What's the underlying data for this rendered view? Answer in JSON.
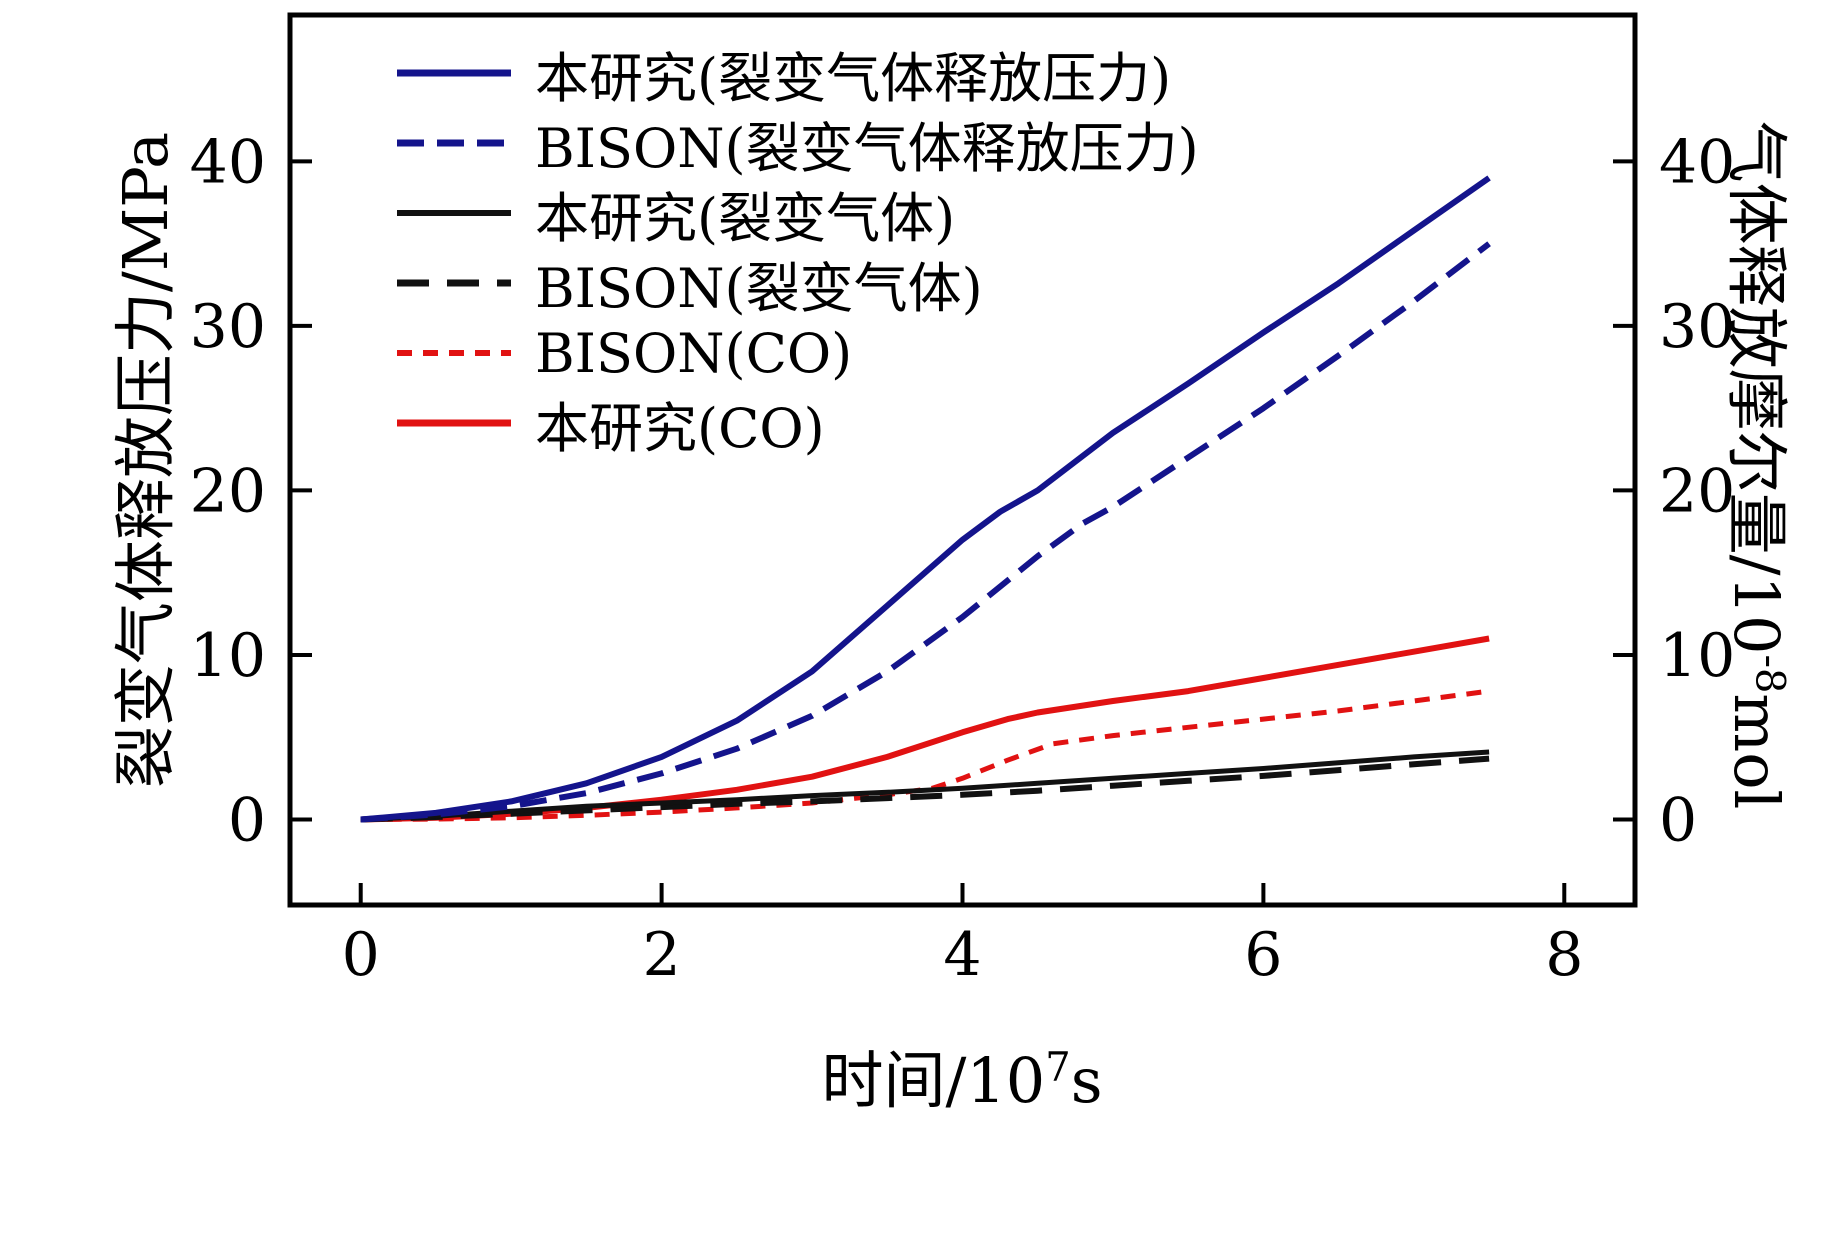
{
  "figure_title": "",
  "chart_data": {
    "type": "line",
    "title": "",
    "xlabel": "时间/10^7 s",
    "xlabel_parts": {
      "base": "时间/10",
      "sup": "7",
      "unit": "s"
    },
    "ylabel_left": "裂变气体释放压力/MPa",
    "ylabel_right": "气体释放摩尔量/10^-8 mol",
    "ylabel_right_parts": {
      "base": "气体释放摩尔量/10",
      "sup": "-8",
      "unit": "mol"
    },
    "xlim": [
      -0.47,
      8.47
    ],
    "ylim": [
      -5.2,
      48.9
    ],
    "x_ticks": [
      0,
      2,
      4,
      6,
      8
    ],
    "y_ticks_left": [
      0,
      10,
      20,
      30,
      40
    ],
    "y_ticks_right": [
      0,
      10,
      20,
      30,
      40
    ],
    "grid": false,
    "legend_position": "upper left",
    "frame": true,
    "series": [
      {
        "name": "本研究(裂变气体释放压力)",
        "color": "#14148c",
        "style": "solid",
        "dash": "",
        "width": 6,
        "x": [
          0,
          0.5,
          1,
          1.5,
          2,
          2.5,
          3,
          3.5,
          4,
          4.25,
          4.5,
          5,
          5.5,
          6,
          6.5,
          7,
          7.5
        ],
        "y": [
          0,
          0.4,
          1.1,
          2.2,
          3.8,
          6,
          9,
          13,
          17,
          18.7,
          20,
          23.5,
          26.5,
          29.6,
          32.6,
          35.8,
          39
        ]
      },
      {
        "name": "BISON(裂变气体释放压力)",
        "color": "#14148c",
        "style": "dashed",
        "dash": "27 13",
        "width": 6,
        "x": [
          0,
          0.5,
          1,
          1.5,
          2,
          2.5,
          3,
          3.5,
          4,
          4.5,
          4.8,
          5,
          5.5,
          6,
          6.5,
          7,
          7.5
        ],
        "y": [
          0,
          0.3,
          0.8,
          1.6,
          2.8,
          4.3,
          6.3,
          9,
          12.3,
          16,
          18,
          19,
          22,
          25,
          28.2,
          31.5,
          35
        ]
      },
      {
        "name": "本研究(裂变气体)",
        "color": "#111111",
        "style": "solid",
        "dash": "",
        "width": 5,
        "x": [
          0,
          0.5,
          1,
          1.5,
          2,
          2.5,
          3,
          3.5,
          4,
          4.5,
          5,
          5.5,
          6,
          6.5,
          7,
          7.5
        ],
        "y": [
          0,
          0.2,
          0.5,
          0.8,
          1,
          1.2,
          1.45,
          1.65,
          1.9,
          2.2,
          2.5,
          2.8,
          3.1,
          3.45,
          3.8,
          4.1
        ]
      },
      {
        "name": "BISON(裂变气体)",
        "color": "#111111",
        "style": "dashed",
        "dash": "32 18",
        "width": 6,
        "x": [
          0,
          0.5,
          1,
          1.5,
          2,
          2.5,
          3,
          3.5,
          4,
          4.5,
          5,
          5.5,
          6,
          6.5,
          7,
          7.5
        ],
        "y": [
          0,
          0.15,
          0.35,
          0.55,
          0.75,
          0.95,
          1.1,
          1.3,
          1.5,
          1.75,
          2.05,
          2.35,
          2.65,
          3,
          3.35,
          3.7
        ]
      },
      {
        "name": "BISON(CO)",
        "color": "#e11212",
        "style": "dashed",
        "dash": "15 11",
        "width": 5,
        "x": [
          0,
          0.5,
          1,
          1.5,
          2,
          2.5,
          3,
          3.5,
          3.8,
          4,
          4.3,
          4.6,
          5,
          5.5,
          6,
          6.5,
          7,
          7.5
        ],
        "y": [
          0,
          0.02,
          0.1,
          0.25,
          0.45,
          0.7,
          1,
          1.5,
          1.9,
          2.5,
          3.6,
          4.6,
          5.1,
          5.6,
          6.1,
          6.6,
          7.2,
          7.8
        ]
      },
      {
        "name": "本研究(CO)",
        "color": "#e11212",
        "style": "solid",
        "dash": "",
        "width": 6,
        "x": [
          0,
          0.5,
          1,
          1.5,
          2,
          2.5,
          3,
          3.5,
          4,
          4.3,
          4.5,
          5,
          5.5,
          6,
          6.5,
          7,
          7.5
        ],
        "y": [
          0,
          0.1,
          0.35,
          0.7,
          1.2,
          1.8,
          2.6,
          3.8,
          5.3,
          6.1,
          6.5,
          7.2,
          7.8,
          8.6,
          9.4,
          10.2,
          11
        ]
      }
    ],
    "colors": {
      "navy": "#14148c",
      "black": "#111111",
      "red": "#e11212",
      "frame": "#000000"
    }
  }
}
